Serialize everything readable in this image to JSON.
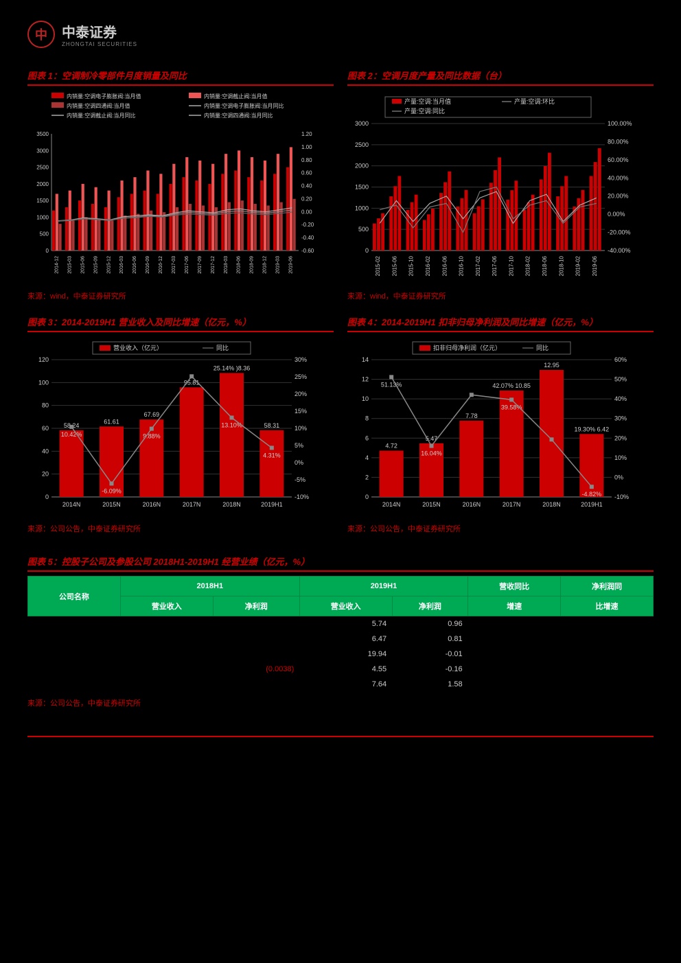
{
  "logo": {
    "mark": "中",
    "name": "中泰证券",
    "sub": "ZHONGTAI SECURITIES"
  },
  "chart1": {
    "title": "图表 1：空调制冷零部件月度销量及同比",
    "legend": [
      "内销量:空调电子膨胀阀:当月值",
      "内销量:空调截止阀:当月值",
      "内销量:空调四通阀:当月值",
      "内销量:空调电子膨胀阀:当月同比",
      "内销量:空调截止阀:当月同比",
      "内销量:空调四通阀:当月同比"
    ],
    "yleft": [
      0,
      500,
      1000,
      1500,
      2000,
      2500,
      3000,
      3500
    ],
    "yright": [
      "-0.60",
      "-0.40",
      "-0.20",
      "0.00",
      "0.20",
      "0.40",
      "0.60",
      "0.80",
      "1.00",
      "1.20"
    ],
    "xlabels": [
      "2014-12",
      "2015-03",
      "2015-06",
      "2015-09",
      "2015-12",
      "2016-03",
      "2016-06",
      "2016-09",
      "2016-12",
      "2017-03",
      "2017-06",
      "2017-09",
      "2017-12",
      "2018-03",
      "2018-06",
      "2018-09",
      "2018-12",
      "2019-03",
      "2019-06"
    ],
    "bars_a": [
      1200,
      1300,
      1500,
      1400,
      1300,
      1600,
      1700,
      1800,
      1700,
      2000,
      2200,
      2100,
      2000,
      2300,
      2400,
      2200,
      2100,
      2300,
      2500
    ],
    "bars_b": [
      1700,
      1800,
      2000,
      1900,
      1800,
      2100,
      2200,
      2400,
      2300,
      2600,
      2800,
      2700,
      2600,
      2900,
      3000,
      2800,
      2700,
      2900,
      3100
    ],
    "bars_c": [
      800,
      900,
      1000,
      950,
      900,
      1050,
      1100,
      1200,
      1150,
      1300,
      1400,
      1350,
      1300,
      1450,
      1500,
      1400,
      1350,
      1450,
      1550
    ],
    "color_a": "#c00",
    "color_b": "#e55",
    "color_c": "#a33",
    "source": "来源：wind，中泰证券研究所"
  },
  "chart2": {
    "title": "图表 2：空调月度产量及同比数据（台）",
    "legend": [
      "产量:空调:当月值",
      "产量:空调:环比",
      "产量:空调:同比"
    ],
    "yleft": [
      0,
      500,
      1000,
      1500,
      2000,
      2500,
      3000
    ],
    "yright": [
      "-40.00%",
      "-20.00%",
      "0.00%",
      "20.00%",
      "40.00%",
      "60.00%",
      "80.00%",
      "100.00%"
    ],
    "xlabels": [
      "2015-02",
      "2015-06",
      "2015-10",
      "2016-02",
      "2016-06",
      "2016-10",
      "2017-02",
      "2017-06",
      "2017-10",
      "2018-02",
      "2018-06",
      "2018-10",
      "2019-02",
      "2019-06"
    ],
    "bars": [
      800,
      1600,
      1200,
      900,
      1700,
      1300,
      1100,
      2000,
      1500,
      1200,
      2100,
      1600,
      1300,
      2200
    ],
    "line1": [
      -10,
      15,
      -8,
      12,
      20,
      -5,
      18,
      25,
      -10,
      15,
      22,
      -8,
      10,
      18
    ],
    "line2": [
      5,
      10,
      -15,
      8,
      12,
      -20,
      25,
      30,
      -5,
      10,
      15,
      -10,
      8,
      12
    ],
    "bar_color": "#c00",
    "source": "来源：wind，中泰证券研究所"
  },
  "chart3": {
    "title": "图表 3：2014-2019H1 营业收入及同比增速（亿元，%）",
    "legend_bar": "营业收入（亿元）",
    "legend_line": "同比",
    "yleft": [
      0,
      20,
      40,
      60,
      80,
      100,
      120
    ],
    "yright": [
      "-10%",
      "-5%",
      "0%",
      "5%",
      "10%",
      "15%",
      "20%",
      "25%",
      "30%"
    ],
    "categories": [
      "2014N",
      "2015N",
      "2016N",
      "2017N",
      "2018N",
      "2019H1"
    ],
    "values": [
      58.24,
      61.61,
      67.69,
      95.81,
      108.36,
      58.31
    ],
    "value_labels": [
      "58.24",
      "61.61",
      "67.69",
      "95.81",
      "25.14% )8.36",
      "58.31"
    ],
    "yoy": [
      10.42,
      -6.09,
      9.88,
      25.14,
      13.1,
      4.31
    ],
    "yoy_labels": [
      "10.42%",
      "-6.09%",
      "9.88%",
      "",
      "13.10%",
      "4.31%"
    ],
    "bar_color": "#c00",
    "line_color": "#888",
    "source": "来源：公司公告，中泰证券研究所"
  },
  "chart4": {
    "title": "图表 4：2014-2019H1 扣非归母净利润及同比增速（亿元，%）",
    "legend_bar": "扣非归母净利润（亿元）",
    "legend_line": "同比",
    "yleft": [
      0,
      2,
      4,
      6,
      8,
      10,
      12,
      14
    ],
    "yright": [
      "-10%",
      "0%",
      "10%",
      "20%",
      "30%",
      "40%",
      "50%",
      "60%"
    ],
    "categories": [
      "2014N",
      "2015N",
      "2016N",
      "2017N",
      "2018N",
      "2019H1"
    ],
    "values": [
      4.72,
      5.47,
      7.78,
      10.85,
      12.95,
      6.42
    ],
    "value_labels": [
      "4.72",
      "5.47",
      "7.78",
      "42.07% 10.85",
      "12.95",
      "19.30% 6.42"
    ],
    "yoy": [
      51.13,
      16.04,
      42.07,
      39.58,
      19.3,
      -4.82
    ],
    "yoy_labels": [
      "51.13%",
      "16.04%",
      "",
      "39.58%",
      "",
      "-4.82%"
    ],
    "bar_color": "#c00",
    "line_color": "#888",
    "source": "来源：公司公告，中泰证券研究所"
  },
  "table": {
    "title": "图表 5：控股子公司及参股公司 2018H1-2019H1 经营业绩（亿元，%）",
    "headers": {
      "name": "公司名称",
      "h2018": "2018H1",
      "h2019": "2019H1",
      "rev_yoy": "营收同比",
      "np_yoy": "净利润同",
      "rev": "营业收入",
      "np": "净利润",
      "growth": "增速",
      "ratio": "比增速"
    },
    "rows": [
      {
        "name": "",
        "r18": "",
        "n18": "",
        "r19": "5.74",
        "n19": "0.96",
        "g1": "",
        "g2": ""
      },
      {
        "name": "",
        "r18": "",
        "n18": "",
        "r19": "6.47",
        "n19": "0.81",
        "g1": "",
        "g2": ""
      },
      {
        "name": "",
        "r18": "",
        "n18": "",
        "r19": "19.94",
        "n19": "-0.01",
        "g1": "",
        "g2": ""
      },
      {
        "name": "",
        "r18": "",
        "n18": "(0.0038)",
        "r19": "4.55",
        "n19": "-0.16",
        "g1": "",
        "g2": "",
        "neg18": true
      },
      {
        "name": "",
        "r18": "",
        "n18": "",
        "r19": "7.64",
        "n19": "1.58",
        "g1": "",
        "g2": ""
      }
    ],
    "source": "来源：公司公告，中泰证券研究所"
  }
}
